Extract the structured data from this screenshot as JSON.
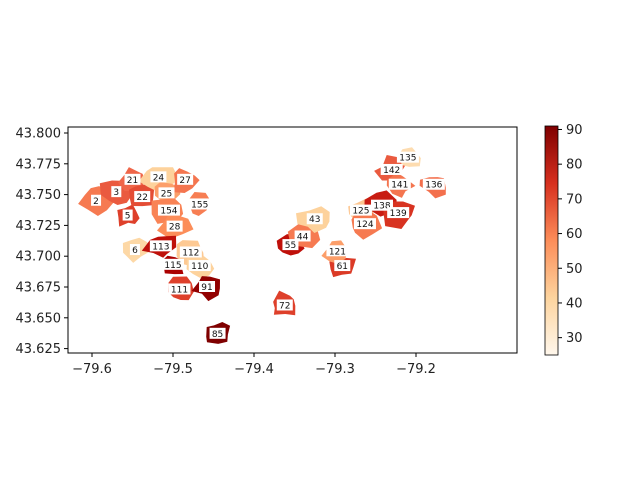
{
  "map": {
    "type": "choropleth",
    "colormap": "OrRd",
    "x_ticks": [
      "−79.6",
      "−79.5",
      "−79.4",
      "−79.3",
      "−79.2"
    ],
    "y_ticks": [
      "43.800",
      "43.775",
      "43.750",
      "43.725",
      "43.700",
      "43.675",
      "43.650",
      "43.625"
    ],
    "colorbar_ticks": [
      "30",
      "40",
      "50",
      "60",
      "70",
      "80",
      "90"
    ],
    "colorbar_range": [
      25,
      91
    ],
    "regions": [
      {
        "label": "2",
        "lon": -79.595,
        "lat": 43.745,
        "value": 62
      },
      {
        "label": "3",
        "lon": -79.57,
        "lat": 43.752,
        "value": 68
      },
      {
        "label": "5",
        "lon": -79.556,
        "lat": 43.733,
        "value": 72
      },
      {
        "label": "21",
        "lon": -79.55,
        "lat": 43.762,
        "value": 66
      },
      {
        "label": "22",
        "lon": -79.538,
        "lat": 43.748,
        "value": 70
      },
      {
        "label": "24",
        "lon": -79.518,
        "lat": 43.764,
        "value": 42
      },
      {
        "label": "25",
        "lon": -79.508,
        "lat": 43.751,
        "value": 55
      },
      {
        "label": "27",
        "lon": -79.485,
        "lat": 43.762,
        "value": 63
      },
      {
        "label": "154",
        "lon": -79.505,
        "lat": 43.737,
        "value": 60
      },
      {
        "label": "155",
        "lon": -79.467,
        "lat": 43.742,
        "value": 61
      },
      {
        "label": "28",
        "lon": -79.498,
        "lat": 43.724,
        "value": 58
      },
      {
        "label": "6",
        "lon": -79.547,
        "lat": 43.705,
        "value": 40
      },
      {
        "label": "113",
        "lon": -79.515,
        "lat": 43.708,
        "value": 80
      },
      {
        "label": "112",
        "lon": -79.478,
        "lat": 43.703,
        "value": 45
      },
      {
        "label": "115",
        "lon": -79.5,
        "lat": 43.693,
        "value": 84
      },
      {
        "label": "110",
        "lon": -79.467,
        "lat": 43.692,
        "value": 42
      },
      {
        "label": "111",
        "lon": -79.492,
        "lat": 43.673,
        "value": 72
      },
      {
        "label": "91",
        "lon": -79.458,
        "lat": 43.675,
        "value": 88
      },
      {
        "label": "85",
        "lon": -79.445,
        "lat": 43.637,
        "value": 91
      },
      {
        "label": "72",
        "lon": -79.362,
        "lat": 43.66,
        "value": 72
      },
      {
        "label": "55",
        "lon": -79.355,
        "lat": 43.709,
        "value": 80
      },
      {
        "label": "44",
        "lon": -79.34,
        "lat": 43.716,
        "value": 62
      },
      {
        "label": "43",
        "lon": -79.325,
        "lat": 43.73,
        "value": 42
      },
      {
        "label": "61",
        "lon": -79.291,
        "lat": 43.692,
        "value": 73
      },
      {
        "label": "121",
        "lon": -79.297,
        "lat": 43.704,
        "value": 55
      },
      {
        "label": "125",
        "lon": -79.268,
        "lat": 43.737,
        "value": 46
      },
      {
        "label": "124",
        "lon": -79.263,
        "lat": 43.726,
        "value": 62
      },
      {
        "label": "138",
        "lon": -79.242,
        "lat": 43.741,
        "value": 78
      },
      {
        "label": "139",
        "lon": -79.222,
        "lat": 43.735,
        "value": 74
      },
      {
        "label": "142",
        "lon": -79.23,
        "lat": 43.77,
        "value": 68
      },
      {
        "label": "141",
        "lon": -79.22,
        "lat": 43.758,
        "value": 63
      },
      {
        "label": "135",
        "lon": -79.21,
        "lat": 43.78,
        "value": 38
      },
      {
        "label": "136",
        "lon": -79.178,
        "lat": 43.758,
        "value": 64
      }
    ]
  }
}
